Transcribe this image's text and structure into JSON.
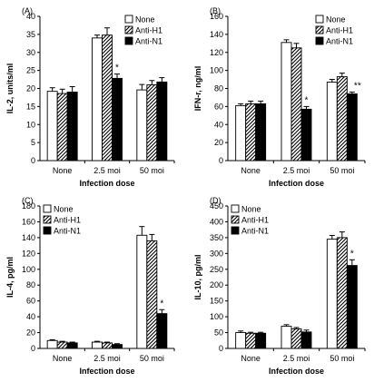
{
  "figure": {
    "x_categories": [
      "None",
      "2.5 moi",
      "50 moi"
    ],
    "legend": [
      "None",
      "Anti-H1",
      "Anti-N1"
    ],
    "patterns": {
      "None": "white",
      "Anti-H1": "hatched",
      "Anti-N1": "black"
    }
  },
  "chart_data": [
    {
      "type": "bar",
      "panel_label": "(A)",
      "xlabel": "Infection dose",
      "ylabel": "IL-2, units/ml",
      "ylim": [
        0,
        40
      ],
      "yticks": [
        0,
        5,
        10,
        15,
        20,
        25,
        30,
        35,
        40
      ],
      "legend_position": "top-right",
      "categories": [
        "None",
        "2.5 moi",
        "50 moi"
      ],
      "series": [
        {
          "name": "None",
          "values": [
            19.2,
            34.0,
            19.6
          ],
          "errors": [
            1.0,
            0.8,
            1.5
          ]
        },
        {
          "name": "Anti-H1",
          "values": [
            18.6,
            34.8,
            21.0
          ],
          "errors": [
            1.2,
            2.0,
            1.2
          ]
        },
        {
          "name": "Anti-N1",
          "values": [
            19.0,
            22.8,
            21.8
          ],
          "errors": [
            1.5,
            1.2,
            1.2
          ]
        }
      ],
      "annotations": [
        {
          "category": "2.5 moi",
          "series": "Anti-N1",
          "text": "*"
        }
      ]
    },
    {
      "type": "bar",
      "panel_label": "(B)",
      "xlabel": "Infection dose",
      "ylabel": "IFN-r, ng/ml",
      "ylim": [
        0,
        160
      ],
      "yticks": [
        0,
        20,
        40,
        60,
        80,
        100,
        120,
        140,
        160
      ],
      "legend_position": "top-right",
      "categories": [
        "None",
        "2.5 moi",
        "50 moi"
      ],
      "series": [
        {
          "name": "None",
          "values": [
            61,
            131,
            87
          ],
          "errors": [
            2,
            3,
            3
          ]
        },
        {
          "name": "Anti-H1",
          "values": [
            63,
            125,
            93
          ],
          "errors": [
            3,
            5,
            4
          ]
        },
        {
          "name": "Anti-N1",
          "values": [
            63,
            57,
            74
          ],
          "errors": [
            3,
            3,
            2
          ]
        }
      ],
      "annotations": [
        {
          "category": "2.5 moi",
          "series": "Anti-N1",
          "text": "*"
        },
        {
          "category": "50 moi",
          "series": "Anti-N1",
          "text": "**"
        }
      ]
    },
    {
      "type": "bar",
      "panel_label": "(C)",
      "xlabel": "Infection dose",
      "ylabel": "IL-4, pg/ml",
      "ylim": [
        0,
        180
      ],
      "yticks": [
        0,
        20,
        40,
        60,
        80,
        100,
        120,
        140,
        160,
        180
      ],
      "legend_position": "top-left",
      "categories": [
        "None",
        "2.5 moi",
        "50 moi"
      ],
      "series": [
        {
          "name": "None",
          "values": [
            10,
            8,
            143
          ],
          "errors": [
            1,
            1,
            11
          ]
        },
        {
          "name": "Anti-H1",
          "values": [
            8,
            7,
            136
          ],
          "errors": [
            1,
            1,
            8
          ]
        },
        {
          "name": "Anti-N1",
          "values": [
            7,
            5,
            44
          ],
          "errors": [
            1,
            1,
            5
          ]
        }
      ],
      "annotations": [
        {
          "category": "50 moi",
          "series": "Anti-N1",
          "text": "*"
        }
      ]
    },
    {
      "type": "bar",
      "panel_label": "(D)",
      "xlabel": "Infection dose",
      "ylabel": "IL-10, pg/ml",
      "ylim": [
        0,
        450
      ],
      "yticks": [
        0,
        50,
        100,
        150,
        200,
        250,
        300,
        350,
        400,
        450
      ],
      "legend_position": "top-left",
      "categories": [
        "None",
        "2.5 moi",
        "50 moi"
      ],
      "series": [
        {
          "name": "None",
          "values": [
            50,
            70,
            345
          ],
          "errors": [
            5,
            5,
            12
          ]
        },
        {
          "name": "Anti-H1",
          "values": [
            48,
            62,
            350
          ],
          "errors": [
            3,
            4,
            18
          ]
        },
        {
          "name": "Anti-N1",
          "values": [
            48,
            52,
            262
          ],
          "errors": [
            3,
            6,
            18
          ]
        }
      ],
      "annotations": [
        {
          "category": "50 moi",
          "series": "Anti-N1",
          "text": "*"
        }
      ]
    }
  ]
}
